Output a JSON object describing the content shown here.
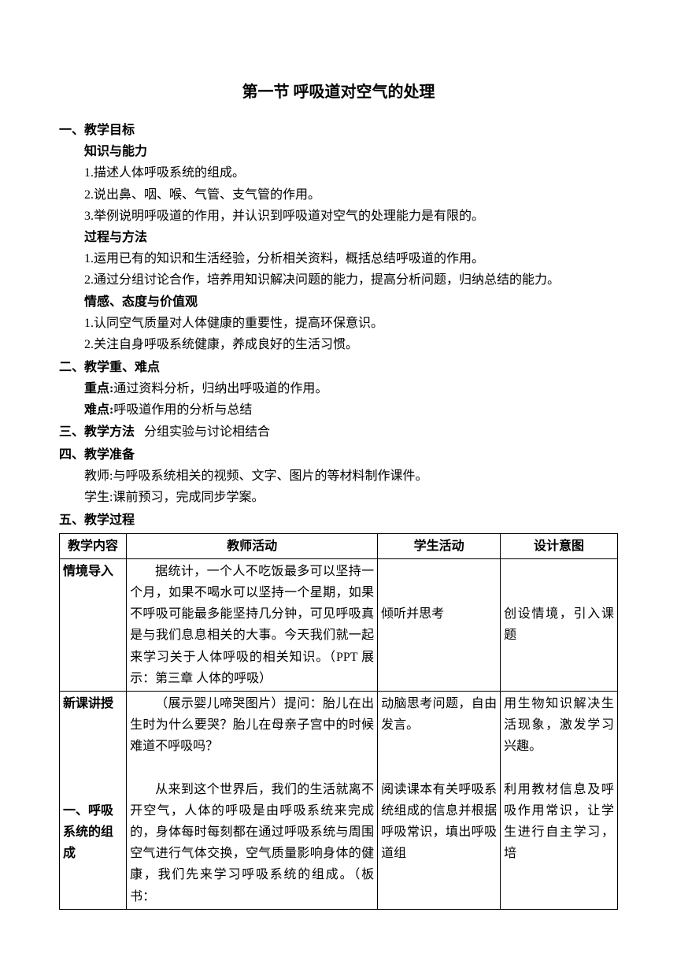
{
  "title": "第一节  呼吸道对空气的处理",
  "sections": {
    "s1": {
      "heading": "一、教学目标",
      "sub1": {
        "title": "知识与能力",
        "items": [
          "1.描述人体呼吸系统的组成。",
          "2.说出鼻、咽、喉、气管、支气管的作用。",
          "3.举例说明呼吸道的作用，并认识到呼吸道对空气的处理能力是有限的。"
        ]
      },
      "sub2": {
        "title": "过程与方法",
        "items": [
          "1.运用已有的知识和生活经验，分析相关资料，概括总结呼吸道的作用。",
          "2.通过分组讨论合作，培养用知识解决问题的能力，提高分析问题，归纳总结的能力。"
        ]
      },
      "sub3": {
        "title": "情感、态度与价值观",
        "items": [
          "1.认同空气质量对人体健康的重要性，提高环保意识。",
          "2.关注自身呼吸系统健康，养成良好的生活习惯。"
        ]
      }
    },
    "s2": {
      "heading": "二、教学重、难点",
      "line1_label": "重点:",
      "line1_text": "通过资料分析，归纳出呼吸道的作用。",
      "line2_label": "难点:",
      "line2_text": "呼吸道作用的分析与总结"
    },
    "s3": {
      "heading": "三、教学方法",
      "text": "分组实验与讨论相结合"
    },
    "s4": {
      "heading": "四、教学准备",
      "line1": "教师:与呼吸系统相关的视频、文字、图片的等材料制作课件。",
      "line2": "学生:课前预习，完成同步学案。"
    },
    "s5": {
      "heading": "五、教学过程"
    }
  },
  "table": {
    "headers": [
      "教学内容",
      "教师活动",
      "学生活动",
      "设计意图"
    ],
    "row1": {
      "c1": "情境导入",
      "c2": "据统计，一个人不吃饭最多可以坚持一个月，如果不喝水可以坚持一个星期，如果不呼吸可能最多能坚持几分钟，可见呼吸真是与我们息息相关的大事。今天我们就一起来学习关于人体呼吸的相关知识。（PPT 展示：第三章 人体的呼吸）",
      "c3": "倾听并思考",
      "c4": "创设情境，引入课题"
    },
    "row2": {
      "c1a": "新课讲授",
      "c1b": "一、呼吸系统的组成",
      "c2a": "（展示婴儿啼哭图片）提问：胎儿在出生时为什么要哭？胎儿在母亲子宫中的时候难道不呼吸吗？",
      "c2b": "从来到这个世界后，我们的生活就离不开空气，人体的呼吸是由呼吸系统来完成的，身体每时每刻都在通过呼吸系统与周围空气进行气体交换，空气质量影响身体的健康，我们先来学习呼吸系统的组成。（板书：",
      "c3a": "动脑思考问题，自由发言。",
      "c3b": "阅读课本有关呼吸系统组成的信息并根据呼吸常识，填出呼吸道组",
      "c4a": "用生物知识解决生活现象，激发学习兴趣。",
      "c4b": "利用教材信息及呼吸作用常识，让学生进行自主学习，培"
    }
  }
}
